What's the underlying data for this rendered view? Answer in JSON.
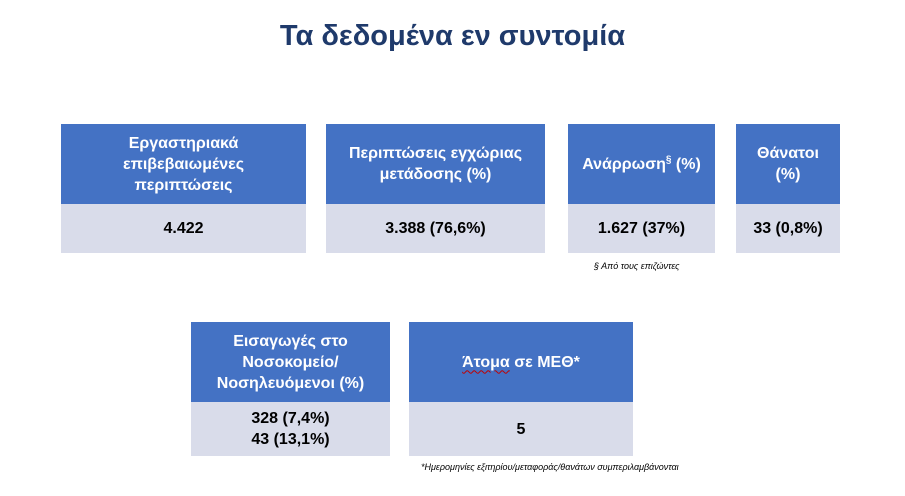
{
  "title": "Τα δεδομένα εν συντομία",
  "cards": [
    {
      "header_lines": [
        "Εργαστηριακά",
        "επιβεβαιωμένες",
        "περιπτώσεις"
      ],
      "values": [
        "4.422"
      ]
    },
    {
      "header_lines": [
        "Περιπτώσεις εγχώριας",
        "μετάδοσης (%)"
      ],
      "values": [
        "3.388 (76,6%)"
      ]
    },
    {
      "header_main": "Ανάρρωση",
      "header_sup": "§",
      "header_tail": " (%)",
      "values": [
        "1.627 (37%)"
      ]
    },
    {
      "header_lines": [
        "Θάνατοι",
        "(%)"
      ],
      "values": [
        "33 (0,8%)"
      ]
    },
    {
      "header_lines": [
        "Εισαγωγές στο",
        "Νοσοκομείο/",
        "Νοσηλευόμενοι (%)"
      ],
      "values": [
        "328 (7,4%)",
        "43 (13,1%)"
      ]
    },
    {
      "header_word": "Άτομα",
      "header_rest": " σε ΜΕΘ*",
      "values": [
        "5"
      ]
    }
  ],
  "notes": {
    "recovery": "§ Από τους επιζώντες",
    "icu": "*Ημερομηνίες εξιτηρίου/μεταφοράς/θανάτων συμπεριλαμβάνονται"
  },
  "colors": {
    "title": "#1f3a6b",
    "header_fill": "#4472c4",
    "value_fill": "#d9dcea"
  }
}
